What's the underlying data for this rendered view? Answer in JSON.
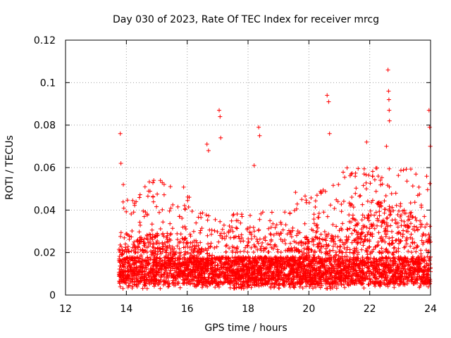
{
  "chart_data": {
    "type": "scatter",
    "title": "Day 030 of 2023, Rate Of TEC Index for receiver mrcg",
    "xlabel": "GPS time / hours",
    "ylabel": "ROTI / TECUs",
    "xlim": [
      12,
      24
    ],
    "ylim": [
      0,
      0.12
    ],
    "xticks": [
      "12",
      "14",
      "16",
      "18",
      "20",
      "22",
      "24"
    ],
    "yticks": [
      "0",
      "0.02",
      "0.04",
      "0.06",
      "0.08",
      "0.1",
      "0.12"
    ],
    "grid": true,
    "marker": "+",
    "color": "#ff0000",
    "series": [
      {
        "name": "ROTI",
        "x_start": 13.75,
        "x_end": 24.0,
        "baseline_range": [
          0.003,
          0.03
        ],
        "notable_points": [
          {
            "x": 13.8,
            "y": 0.076
          },
          {
            "x": 13.82,
            "y": 0.062
          },
          {
            "x": 13.9,
            "y": 0.052
          },
          {
            "x": 14.9,
            "y": 0.054
          },
          {
            "x": 16.65,
            "y": 0.071
          },
          {
            "x": 16.7,
            "y": 0.068
          },
          {
            "x": 17.05,
            "y": 0.087
          },
          {
            "x": 17.08,
            "y": 0.084
          },
          {
            "x": 17.1,
            "y": 0.074
          },
          {
            "x": 18.35,
            "y": 0.079
          },
          {
            "x": 18.38,
            "y": 0.075
          },
          {
            "x": 18.2,
            "y": 0.061
          },
          {
            "x": 20.6,
            "y": 0.094
          },
          {
            "x": 20.65,
            "y": 0.091
          },
          {
            "x": 20.68,
            "y": 0.076
          },
          {
            "x": 21.9,
            "y": 0.072
          },
          {
            "x": 22.6,
            "y": 0.106
          },
          {
            "x": 22.62,
            "y": 0.096
          },
          {
            "x": 22.63,
            "y": 0.092
          },
          {
            "x": 22.64,
            "y": 0.087
          },
          {
            "x": 22.65,
            "y": 0.082
          },
          {
            "x": 22.55,
            "y": 0.07
          },
          {
            "x": 23.95,
            "y": 0.087
          },
          {
            "x": 23.97,
            "y": 0.079
          },
          {
            "x": 23.99,
            "y": 0.07
          }
        ]
      }
    ]
  }
}
